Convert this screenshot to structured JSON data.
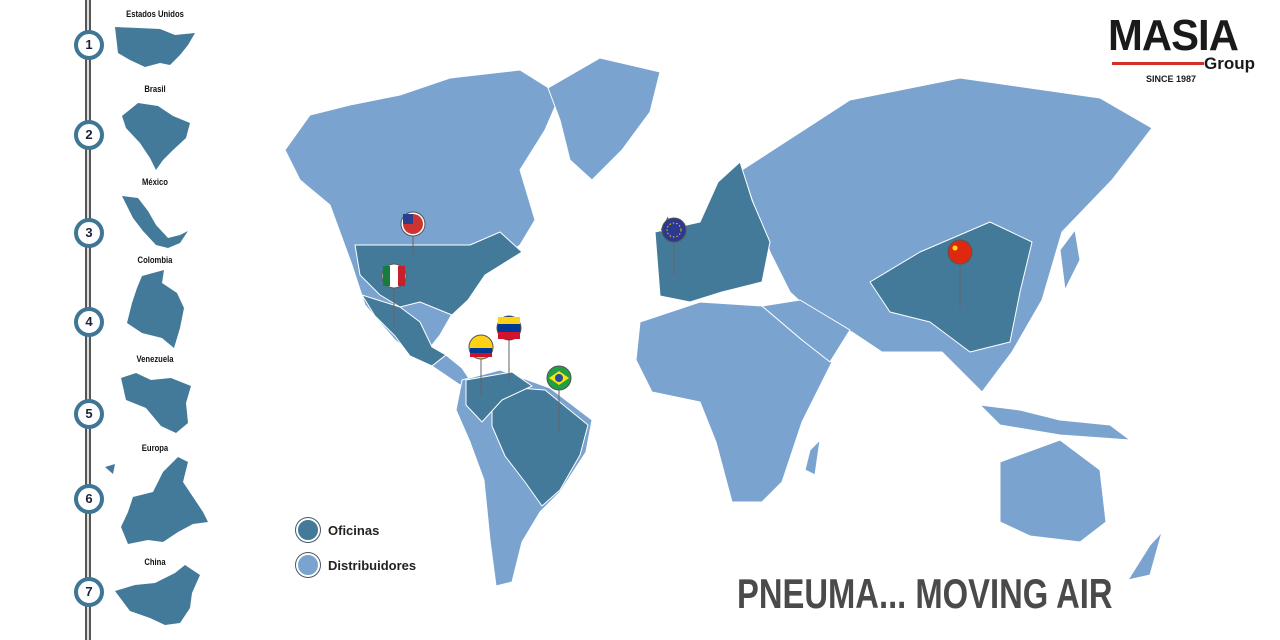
{
  "colors": {
    "office": "#437a99",
    "distributor": "#7aa3cf",
    "accent": "#d4302a"
  },
  "sidebar": {
    "items": [
      {
        "number": "1",
        "label": "Estados Unidos"
      },
      {
        "number": "2",
        "label": "Brasil"
      },
      {
        "number": "3",
        "label": "México"
      },
      {
        "number": "4",
        "label": "Colombia"
      },
      {
        "number": "5",
        "label": "Venezuela"
      },
      {
        "number": "6",
        "label": "Europa"
      },
      {
        "number": "7",
        "label": "China"
      }
    ]
  },
  "logo": {
    "name": "MASIA",
    "sub": "Group",
    "since": "SINCE 1987"
  },
  "legend": {
    "offices": "Oficinas",
    "distributors": "Distribuidores"
  },
  "pins": [
    "usa-flag",
    "mexico-flag",
    "colombia-flag",
    "venezuela-flag",
    "brazil-flag",
    "eu-flag",
    "china-flag"
  ],
  "slogan": "PNEUMA... MOVING AIR"
}
